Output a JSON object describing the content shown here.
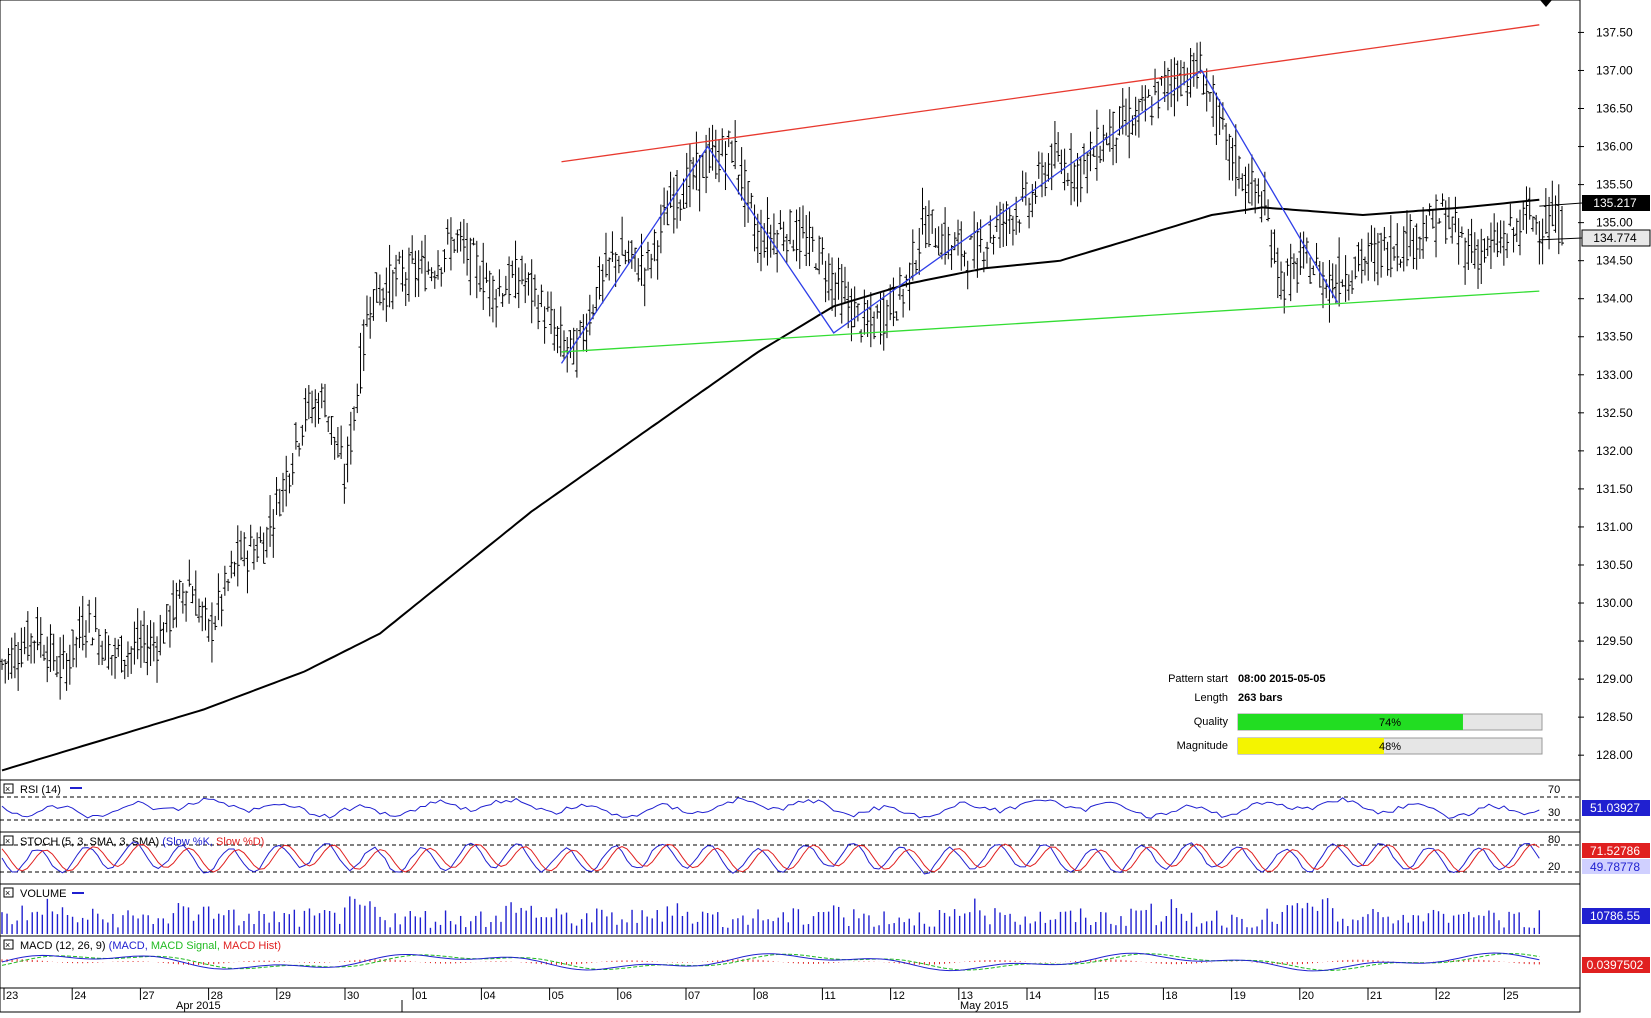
{
  "chart_data": {
    "type": "line",
    "symbol_note": "",
    "price_panel": {
      "ylim": [
        127.7,
        137.9
      ],
      "y_ticks": [
        "128.00",
        "128.50",
        "129.00",
        "129.50",
        "130.00",
        "130.50",
        "131.00",
        "131.50",
        "132.00",
        "132.50",
        "133.00",
        "133.50",
        "134.00",
        "134.50",
        "135.00",
        "135.50",
        "136.00",
        "136.50",
        "137.00",
        "137.50"
      ],
      "current_price": "135.217",
      "marker_price": "134.774",
      "bar_count": 484,
      "key_points": [
        [
          0,
          129.2
        ],
        [
          14,
          129.6
        ],
        [
          24,
          129.1
        ],
        [
          34,
          129.8
        ],
        [
          44,
          129.3
        ],
        [
          62,
          129.5
        ],
        [
          74,
          130.3
        ],
        [
          82,
          129.6
        ],
        [
          94,
          130.6
        ],
        [
          104,
          130.8
        ],
        [
          114,
          131.8
        ],
        [
          120,
          132.5
        ],
        [
          128,
          132.7
        ],
        [
          136,
          131.6
        ],
        [
          146,
          134.0
        ],
        [
          158,
          134.3
        ],
        [
          170,
          134.4
        ],
        [
          180,
          134.8
        ],
        [
          186,
          134.5
        ],
        [
          196,
          134.1
        ],
        [
          206,
          134.3
        ],
        [
          214,
          133.9
        ],
        [
          222,
          133.4
        ],
        [
          228,
          133.3
        ],
        [
          236,
          134.1
        ],
        [
          244,
          134.6
        ],
        [
          256,
          134.4
        ],
        [
          266,
          135.3
        ],
        [
          280,
          135.8
        ],
        [
          290,
          136.0
        ],
        [
          300,
          134.8
        ],
        [
          312,
          134.9
        ],
        [
          324,
          134.6
        ],
        [
          336,
          133.9
        ],
        [
          344,
          133.6
        ],
        [
          358,
          134.1
        ],
        [
          366,
          135.0
        ],
        [
          376,
          134.7
        ],
        [
          386,
          134.6
        ],
        [
          396,
          135.0
        ],
        [
          408,
          135.3
        ],
        [
          416,
          135.8
        ],
        [
          428,
          135.7
        ],
        [
          440,
          136.2
        ],
        [
          452,
          136.4
        ],
        [
          464,
          136.9
        ],
        [
          476,
          137.0
        ],
        [
          486,
          136.0
        ],
        [
          494,
          135.5
        ],
        [
          500,
          135.3
        ],
        [
          508,
          134.2
        ],
        [
          518,
          134.5
        ],
        [
          526,
          134.2
        ],
        [
          536,
          134.4
        ],
        [
          546,
          134.6
        ],
        [
          560,
          134.8
        ],
        [
          572,
          135.1
        ],
        [
          580,
          134.7
        ],
        [
          588,
          134.6
        ],
        [
          598,
          134.8
        ],
        [
          606,
          135.1
        ],
        [
          610,
          135.0
        ]
      ],
      "sma_points": [
        [
          0,
          127.8
        ],
        [
          40,
          128.2
        ],
        [
          80,
          128.6
        ],
        [
          120,
          129.1
        ],
        [
          150,
          129.6
        ],
        [
          180,
          130.4
        ],
        [
          210,
          131.2
        ],
        [
          240,
          131.9
        ],
        [
          270,
          132.6
        ],
        [
          300,
          133.3
        ],
        [
          330,
          133.9
        ],
        [
          360,
          134.2
        ],
        [
          390,
          134.4
        ],
        [
          420,
          134.5
        ],
        [
          450,
          134.8
        ],
        [
          480,
          135.1
        ],
        [
          500,
          135.2
        ],
        [
          540,
          135.1
        ],
        [
          580,
          135.2
        ],
        [
          610,
          135.3
        ]
      ],
      "upper_trendline": [
        [
          222,
          135.8
        ],
        [
          610,
          137.6
        ]
      ],
      "lower_trendline": [
        [
          222,
          133.3
        ],
        [
          610,
          134.1
        ]
      ],
      "zigzag": [
        [
          222,
          133.15
        ],
        [
          280,
          136.0
        ],
        [
          330,
          133.55
        ],
        [
          476,
          137.0
        ],
        [
          530,
          133.95
        ]
      ]
    },
    "x_ticks": [
      "23",
      "24",
      "27",
      "28",
      "29",
      "30",
      "01",
      "04",
      "05",
      "06",
      "07",
      "08",
      "11",
      "12",
      "13",
      "14",
      "15",
      "18",
      "19",
      "20",
      "21",
      "22",
      "25"
    ],
    "month_labels": [
      "Apr 2015",
      "May 2015"
    ],
    "pattern_info": {
      "start_label": "Pattern start",
      "start_value": "08:00 2015-05-05",
      "length_label": "Length",
      "length_value": "263 bars",
      "quality_label": "Quality",
      "quality_value": 74,
      "quality_text": "74%",
      "magnitude_label": "Magnitude",
      "magnitude_value": 48,
      "magnitude_text": "48%"
    },
    "indicators": {
      "rsi": {
        "label": "RSI (14)",
        "levels": [
          "70",
          "30"
        ],
        "value": "51.03927"
      },
      "stoch": {
        "label_prefix": "STOCH (5, 3, SMA, 3, SMA)",
        "label_k": "(Slow %K,",
        "label_d": "Slow %D)",
        "levels": [
          "80",
          "20"
        ],
        "value_k": "71.52786",
        "value_d": "49.78778"
      },
      "volume": {
        "label": "VOLUME",
        "value": "10786.55"
      },
      "macd": {
        "label_prefix": "MACD (12, 26, 9)",
        "label_macd": "(MACD,",
        "label_signal": "MACD Signal,",
        "label_hist": "MACD Hist)",
        "value": "0.0397502"
      }
    },
    "colors": {
      "bull": "#000000",
      "sma": "#000000",
      "upper": "#e8392f",
      "lower": "#33dd33",
      "zigzag": "#2f3fe8",
      "quality": "#22dd22",
      "magnitude": "#f4f400",
      "rsi": "#2020d0",
      "stoch_k": "#2020d0",
      "stoch_d": "#e02020",
      "volume": "#2020d0",
      "macd": "#2020d0",
      "macd_signal": "#22bb22",
      "macd_hist": "#e02020"
    }
  }
}
